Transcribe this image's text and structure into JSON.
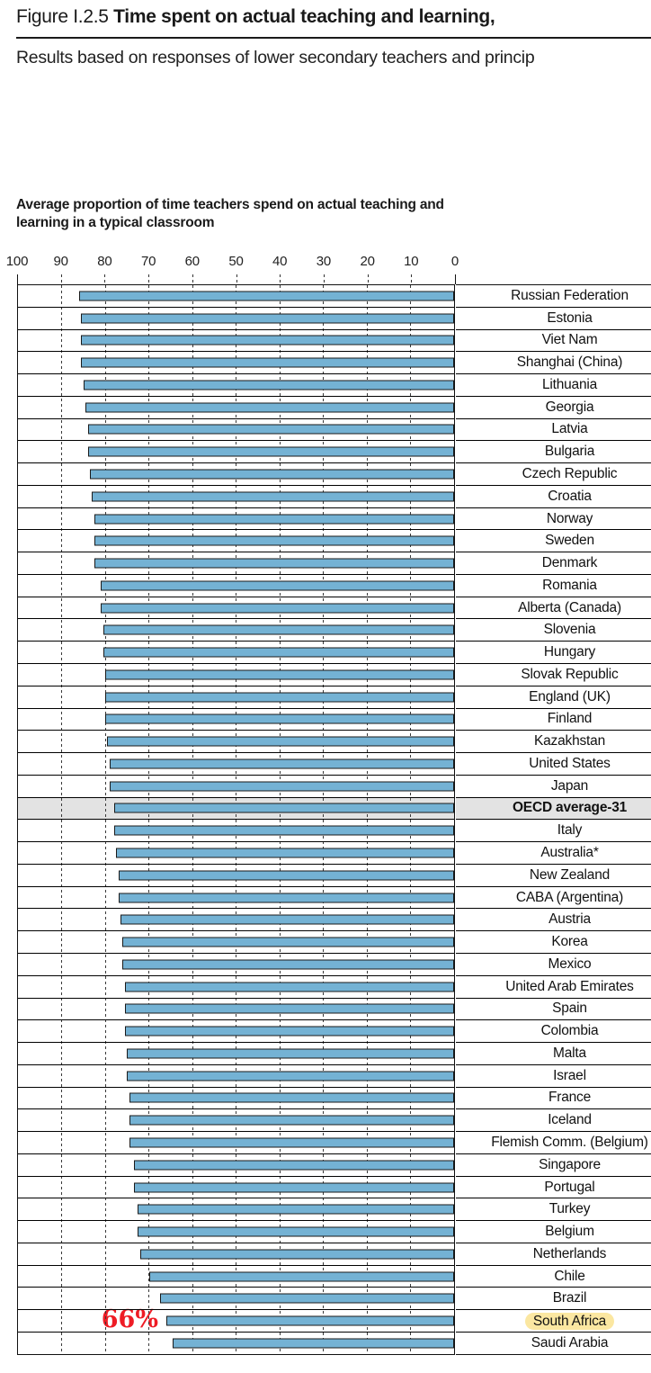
{
  "page": {
    "title_prefix": "Figure I.2.5",
    "title_bold": " Time spent on actual teaching and learning,",
    "subtitle": "Results based on responses of lower secondary teachers and princip"
  },
  "chart_data": {
    "type": "bar",
    "orientation": "horizontal",
    "value_axis": "top axis, reversed: 100 at left, 0 at right; bars grow right-to-left",
    "title": "Average proportion of time teachers spend on actual teaching and learning in a typical classroom",
    "xlim": [
      0,
      100
    ],
    "axis_ticks": [
      100,
      90,
      80,
      70,
      60,
      50,
      40,
      30,
      20,
      10,
      0
    ],
    "grid": "dashed vertical gridlines at each 10 units",
    "legend": "none",
    "rows": [
      {
        "label": "Russian Federation",
        "value": 86
      },
      {
        "label": "Estonia",
        "value": 85.5
      },
      {
        "label": "Viet Nam",
        "value": 85.5
      },
      {
        "label": "Shanghai (China)",
        "value": 85.5
      },
      {
        "label": "Lithuania",
        "value": 85
      },
      {
        "label": "Georgia",
        "value": 84.5
      },
      {
        "label": "Latvia",
        "value": 84
      },
      {
        "label": "Bulgaria",
        "value": 84
      },
      {
        "label": "Czech Republic",
        "value": 83.5
      },
      {
        "label": "Croatia",
        "value": 83
      },
      {
        "label": "Norway",
        "value": 82.5
      },
      {
        "label": "Sweden",
        "value": 82.5
      },
      {
        "label": "Denmark",
        "value": 82.5
      },
      {
        "label": "Romania",
        "value": 81
      },
      {
        "label": "Alberta (Canada)",
        "value": 81
      },
      {
        "label": "Slovenia",
        "value": 80.5
      },
      {
        "label": "Hungary",
        "value": 80.5
      },
      {
        "label": "Slovak Republic",
        "value": 80
      },
      {
        "label": "England (UK)",
        "value": 80
      },
      {
        "label": "Finland",
        "value": 80
      },
      {
        "label": "Kazakhstan",
        "value": 79.5
      },
      {
        "label": "United States",
        "value": 79
      },
      {
        "label": "Japan",
        "value": 79
      },
      {
        "label": "OECD average-31",
        "value": 78,
        "oecd": true
      },
      {
        "label": "Italy",
        "value": 78
      },
      {
        "label": "Australia*",
        "value": 77.5
      },
      {
        "label": "New Zealand",
        "value": 77
      },
      {
        "label": "CABA (Argentina)",
        "value": 77
      },
      {
        "label": "Austria",
        "value": 76.5
      },
      {
        "label": "Korea",
        "value": 76
      },
      {
        "label": "Mexico",
        "value": 76
      },
      {
        "label": "United Arab Emirates",
        "value": 75.5
      },
      {
        "label": "Spain",
        "value": 75.5
      },
      {
        "label": "Colombia",
        "value": 75.5
      },
      {
        "label": "Malta",
        "value": 75
      },
      {
        "label": "Israel",
        "value": 75
      },
      {
        "label": "France",
        "value": 74.5
      },
      {
        "label": "Iceland",
        "value": 74.5
      },
      {
        "label": "Flemish Comm. (Belgium)",
        "value": 74.5
      },
      {
        "label": "Singapore",
        "value": 73.5
      },
      {
        "label": "Portugal",
        "value": 73.5
      },
      {
        "label": "Turkey",
        "value": 72.5
      },
      {
        "label": "Belgium",
        "value": 72.5
      },
      {
        "label": "Netherlands",
        "value": 72
      },
      {
        "label": "Chile",
        "value": 70
      },
      {
        "label": "Brazil",
        "value": 67.5
      },
      {
        "label": "South Africa",
        "value": 66,
        "highlight": true
      },
      {
        "label": "Saudi Arabia",
        "value": 64.5
      }
    ],
    "annotation": {
      "text": "66%",
      "target": "South Africa",
      "color": "#ee1c25"
    },
    "colors": {
      "bar_fill": "#74b2d4",
      "bar_border": "#1a1a1a",
      "oecd_band": "#e3e3e3",
      "label_highlight": "#fbe7a1",
      "annotation_red": "#ee1c25"
    }
  }
}
